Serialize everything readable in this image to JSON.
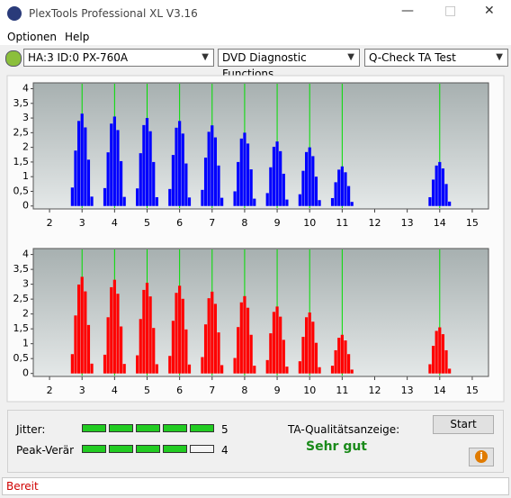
{
  "window": {
    "title": "PlexTools Professional XL V3.16"
  },
  "menu": [
    "Optionen",
    "Help"
  ],
  "toolbar": {
    "drive": "HA:3 ID:0  PX-760A",
    "function": "DVD Diagnostic Functions",
    "test": "Q-Check TA Test"
  },
  "chart_data": [
    {
      "type": "bar",
      "color": "#0000ff",
      "x": [
        2.7,
        2.8,
        2.9,
        3.0,
        3.1,
        3.2,
        3.3,
        3.7,
        3.8,
        3.9,
        4.0,
        4.1,
        4.2,
        4.3,
        4.7,
        4.8,
        4.9,
        5.0,
        5.1,
        5.2,
        5.3,
        5.7,
        5.8,
        5.9,
        6.0,
        6.1,
        6.2,
        6.3,
        6.7,
        6.8,
        6.9,
        7.0,
        7.1,
        7.2,
        7.3,
        7.7,
        7.8,
        7.9,
        8.0,
        8.1,
        8.2,
        8.3,
        8.7,
        8.8,
        8.9,
        9.0,
        9.1,
        9.2,
        9.3,
        9.7,
        9.8,
        9.9,
        10.0,
        10.1,
        10.2,
        10.3,
        10.7,
        10.8,
        10.9,
        11.0,
        11.1,
        11.2,
        11.3,
        13.7,
        13.8,
        13.9,
        14.0,
        14.1,
        14.2,
        14.3
      ],
      "values": [
        0.63,
        1.89,
        2.9,
        3.15,
        2.68,
        1.58,
        0.32,
        0.61,
        1.83,
        2.81,
        3.05,
        2.59,
        1.53,
        0.31,
        0.6,
        1.8,
        2.76,
        3.0,
        2.55,
        1.5,
        0.3,
        0.58,
        1.74,
        2.67,
        2.9,
        2.47,
        1.45,
        0.29,
        0.55,
        1.65,
        2.53,
        2.75,
        2.34,
        1.38,
        0.28,
        0.5,
        1.5,
        2.3,
        2.5,
        2.13,
        1.25,
        0.25,
        0.44,
        1.32,
        2.02,
        2.2,
        1.87,
        1.1,
        0.22,
        0.4,
        1.2,
        1.84,
        2.0,
        1.7,
        1.0,
        0.2,
        0.27,
        0.81,
        1.24,
        1.35,
        1.15,
        0.68,
        0.14,
        0.3,
        0.9,
        1.38,
        1.5,
        1.28,
        0.75,
        0.15
      ],
      "xlim": [
        1.5,
        15.5
      ],
      "ylim": [
        -0.1,
        4.2
      ],
      "xticks": [
        2,
        3,
        4,
        5,
        6,
        7,
        8,
        9,
        10,
        11,
        12,
        13,
        14,
        15
      ],
      "yticks": [
        0,
        {
          "value": 0.5,
          "label": "0,5"
        },
        1,
        {
          "value": 1.5,
          "label": "1,5"
        },
        2,
        {
          "value": 2.5,
          "label": "2,5"
        },
        3,
        {
          "value": 3.5,
          "label": "3,5"
        },
        4
      ],
      "markers": [
        3,
        4,
        5,
        6,
        7,
        8,
        9,
        10,
        11,
        14
      ],
      "marker_color": "#00dd00"
    },
    {
      "type": "bar",
      "color": "#ff0000",
      "x": [
        2.7,
        2.8,
        2.9,
        3.0,
        3.1,
        3.2,
        3.3,
        3.7,
        3.8,
        3.9,
        4.0,
        4.1,
        4.2,
        4.3,
        4.7,
        4.8,
        4.9,
        5.0,
        5.1,
        5.2,
        5.3,
        5.7,
        5.8,
        5.9,
        6.0,
        6.1,
        6.2,
        6.3,
        6.7,
        6.8,
        6.9,
        7.0,
        7.1,
        7.2,
        7.3,
        7.7,
        7.8,
        7.9,
        8.0,
        8.1,
        8.2,
        8.3,
        8.7,
        8.8,
        8.9,
        9.0,
        9.1,
        9.2,
        9.3,
        9.7,
        9.8,
        9.9,
        10.0,
        10.1,
        10.2,
        10.3,
        10.7,
        10.8,
        10.9,
        11.0,
        11.1,
        11.2,
        11.3,
        13.7,
        13.8,
        13.9,
        14.0,
        14.1,
        14.2,
        14.3
      ],
      "values": [
        0.65,
        1.95,
        2.99,
        3.25,
        2.76,
        1.63,
        0.33,
        0.63,
        1.89,
        2.9,
        3.15,
        2.68,
        1.58,
        0.32,
        0.61,
        1.83,
        2.81,
        3.05,
        2.59,
        1.53,
        0.31,
        0.59,
        1.77,
        2.71,
        2.95,
        2.51,
        1.48,
        0.3,
        0.55,
        1.65,
        2.53,
        2.75,
        2.34,
        1.38,
        0.28,
        0.52,
        1.56,
        2.39,
        2.6,
        2.21,
        1.3,
        0.26,
        0.45,
        1.35,
        2.07,
        2.25,
        1.91,
        1.13,
        0.23,
        0.41,
        1.23,
        1.89,
        2.05,
        1.74,
        1.03,
        0.21,
        0.26,
        0.78,
        1.2,
        1.3,
        1.11,
        0.65,
        0.13,
        0.31,
        0.93,
        1.43,
        1.55,
        1.32,
        0.78,
        0.16
      ],
      "xlim": [
        1.5,
        15.5
      ],
      "ylim": [
        -0.1,
        4.2
      ],
      "xticks": [
        2,
        3,
        4,
        5,
        6,
        7,
        8,
        9,
        10,
        11,
        12,
        13,
        14,
        15
      ],
      "yticks": [
        0,
        {
          "value": 0.5,
          "label": "0,5"
        },
        1,
        {
          "value": 1.5,
          "label": "1,5"
        },
        2,
        {
          "value": 2.5,
          "label": "2,5"
        },
        3,
        {
          "value": 3.5,
          "label": "3,5"
        },
        4
      ],
      "markers": [
        3,
        4,
        5,
        6,
        7,
        8,
        9,
        10,
        11,
        14
      ],
      "marker_color": "#00dd00"
    }
  ],
  "results": {
    "jitter": {
      "label": "Jitter:",
      "value": 5
    },
    "peak": {
      "label": "Peak-Veränd",
      "value": 4
    }
  },
  "quality": {
    "label": "TA-Qualitätsanzeige:",
    "value": "Sehr gut"
  },
  "buttons": {
    "start": "Start"
  },
  "status": "Bereit"
}
